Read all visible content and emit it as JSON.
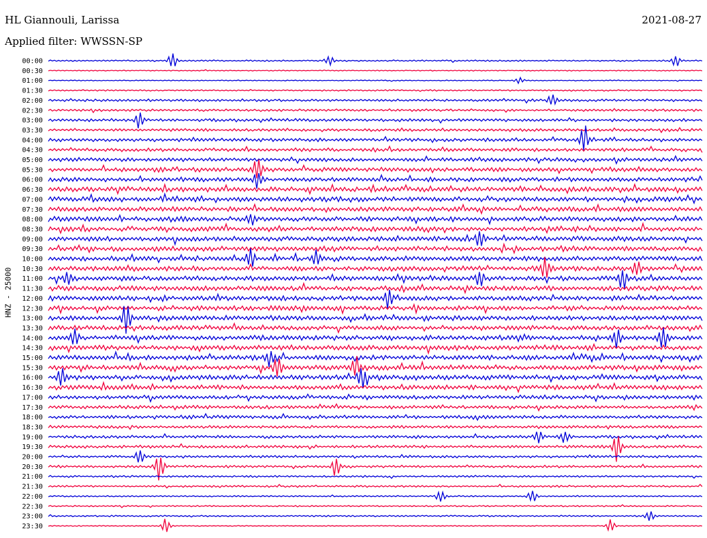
{
  "header": {
    "station": "HL Giannouli, Larissa",
    "date": "2021-08-27",
    "filter": "Applied filter: WWSSN-SP"
  },
  "chart_data": {
    "type": "line",
    "title": "HL Giannouli, Larissa",
    "subtitle": "Applied filter: WWSSN-SP",
    "ylabel": "HNZ - 25000",
    "xlabel": "",
    "time_ticks": [
      "00:00",
      "00:30",
      "01:00",
      "01:30",
      "02:00",
      "02:30",
      "03:00",
      "03:30",
      "04:00",
      "04:30",
      "05:00",
      "05:30",
      "06:00",
      "06:30",
      "07:00",
      "07:30",
      "08:00",
      "08:30",
      "09:00",
      "09:30",
      "10:00",
      "10:30",
      "11:00",
      "11:30",
      "12:00",
      "12:30",
      "13:00",
      "13:30",
      "14:00",
      "14:30",
      "15:00",
      "15:30",
      "16:00",
      "16:30",
      "17:00",
      "17:30",
      "18:00",
      "18:30",
      "19:00",
      "19:30",
      "20:00",
      "20:30",
      "21:00",
      "21:30",
      "22:00",
      "22:30",
      "23:00",
      "23:30"
    ],
    "trace_colors": [
      "#0000d8",
      "#f0003c"
    ],
    "noise_level": [
      0.3,
      0.2,
      0.2,
      0.3,
      0.5,
      0.5,
      0.6,
      0.6,
      0.7,
      0.7,
      0.8,
      0.9,
      0.9,
      1.0,
      1.0,
      1.0,
      1.0,
      1.0,
      1.0,
      1.0,
      1.0,
      1.0,
      1.0,
      1.0,
      1.0,
      1.0,
      1.0,
      1.0,
      1.0,
      1.0,
      1.0,
      1.0,
      1.0,
      1.0,
      0.8,
      0.7,
      0.7,
      0.6,
      0.6,
      0.6,
      0.5,
      0.5,
      0.4,
      0.4,
      0.3,
      0.3,
      0.3,
      0.2
    ],
    "events": [
      {
        "row": 0,
        "pos": 0.19,
        "amp": 12
      },
      {
        "row": 0,
        "pos": 0.43,
        "amp": 7
      },
      {
        "row": 0,
        "pos": 0.96,
        "amp": 8
      },
      {
        "row": 2,
        "pos": 0.72,
        "amp": 5
      },
      {
        "row": 4,
        "pos": 0.77,
        "amp": 9
      },
      {
        "row": 6,
        "pos": 0.14,
        "amp": 12
      },
      {
        "row": 8,
        "pos": 0.82,
        "amp": 22
      },
      {
        "row": 11,
        "pos": 0.32,
        "amp": 18
      },
      {
        "row": 12,
        "pos": 0.32,
        "amp": 14
      },
      {
        "row": 16,
        "pos": 0.31,
        "amp": 9
      },
      {
        "row": 18,
        "pos": 0.66,
        "amp": 12
      },
      {
        "row": 20,
        "pos": 0.31,
        "amp": 16
      },
      {
        "row": 20,
        "pos": 0.41,
        "amp": 12
      },
      {
        "row": 21,
        "pos": 0.76,
        "amp": 18
      },
      {
        "row": 21,
        "pos": 0.9,
        "amp": 12
      },
      {
        "row": 22,
        "pos": 0.03,
        "amp": 10
      },
      {
        "row": 22,
        "pos": 0.66,
        "amp": 12
      },
      {
        "row": 22,
        "pos": 0.88,
        "amp": 14
      },
      {
        "row": 24,
        "pos": 0.52,
        "amp": 14
      },
      {
        "row": 26,
        "pos": 0.12,
        "amp": 26
      },
      {
        "row": 28,
        "pos": 0.04,
        "amp": 14
      },
      {
        "row": 28,
        "pos": 0.87,
        "amp": 16
      },
      {
        "row": 28,
        "pos": 0.94,
        "amp": 16
      },
      {
        "row": 30,
        "pos": 0.34,
        "amp": 12
      },
      {
        "row": 31,
        "pos": 0.35,
        "amp": 16
      },
      {
        "row": 31,
        "pos": 0.47,
        "amp": 16
      },
      {
        "row": 32,
        "pos": 0.02,
        "amp": 16
      },
      {
        "row": 32,
        "pos": 0.48,
        "amp": 18
      },
      {
        "row": 38,
        "pos": 0.75,
        "amp": 10
      },
      {
        "row": 38,
        "pos": 0.79,
        "amp": 10
      },
      {
        "row": 39,
        "pos": 0.87,
        "amp": 24
      },
      {
        "row": 40,
        "pos": 0.14,
        "amp": 10
      },
      {
        "row": 41,
        "pos": 0.44,
        "amp": 16
      },
      {
        "row": 41,
        "pos": 0.17,
        "amp": 22
      },
      {
        "row": 44,
        "pos": 0.6,
        "amp": 10
      },
      {
        "row": 44,
        "pos": 0.74,
        "amp": 10
      },
      {
        "row": 46,
        "pos": 0.92,
        "amp": 10
      },
      {
        "row": 47,
        "pos": 0.18,
        "amp": 12
      },
      {
        "row": 47,
        "pos": 0.86,
        "amp": 10
      }
    ]
  }
}
